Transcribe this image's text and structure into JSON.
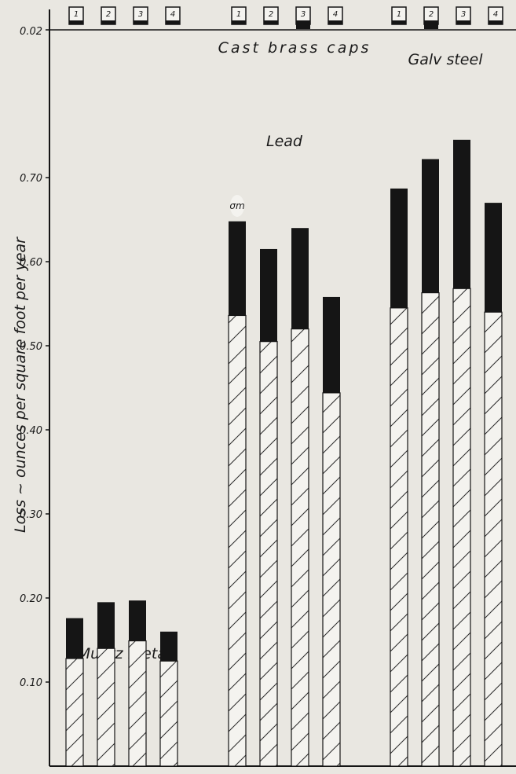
{
  "chart_data": {
    "type": "bar",
    "ylabel": "Loss ~ ounces per square foot per year",
    "y_ticks": [
      "0.10",
      "0.20",
      "0.30",
      "0.40",
      "0.50",
      "0.60",
      "0.70"
    ],
    "ylim": [
      0,
      0.78
    ],
    "stacked": true,
    "series_parts": [
      "mean loss (hatched)",
      "deviation σm (solid)"
    ],
    "groups": [
      {
        "label": "Muntz metal",
        "categories": [
          "1",
          "2",
          "3",
          "4"
        ],
        "base": [
          0.128,
          0.14,
          0.149,
          0.125
        ],
        "total": [
          0.176,
          0.195,
          0.197,
          0.16
        ]
      },
      {
        "label": "Lead",
        "categories": [
          "1",
          "2",
          "3",
          "4"
        ],
        "base": [
          0.536,
          0.505,
          0.52,
          0.444
        ],
        "total": [
          0.648,
          0.615,
          0.64,
          0.558
        ]
      },
      {
        "label": "Galv steel",
        "categories": [
          "1",
          "2",
          "3",
          "4"
        ],
        "base": [
          0.545,
          0.563,
          0.568,
          0.54
        ],
        "total": [
          0.687,
          0.722,
          0.745,
          0.67
        ]
      }
    ],
    "top_panel": {
      "label": "Cast brass caps",
      "y_tick": "0.02",
      "caps": [
        {
          "label": "1",
          "value": 0.02
        },
        {
          "label": "2",
          "value": 0.02
        },
        {
          "label": "3",
          "value": 0.02
        },
        {
          "label": "4",
          "value": 0.02
        },
        {
          "label": "1",
          "value": 0.02
        },
        {
          "label": "2",
          "value": 0.02
        },
        {
          "label": "3",
          "value": 0.022
        },
        {
          "label": "4",
          "value": 0.02
        },
        {
          "label": "1",
          "value": 0.02
        },
        {
          "label": "2",
          "value": 0.022
        },
        {
          "label": "3",
          "value": 0.02
        },
        {
          "label": "4",
          "value": 0.02
        }
      ]
    },
    "annotation": "σm"
  },
  "colors": {
    "background": "#e9e7e1",
    "ink": "#151515",
    "hatch_fill": "#f4f3ef"
  }
}
